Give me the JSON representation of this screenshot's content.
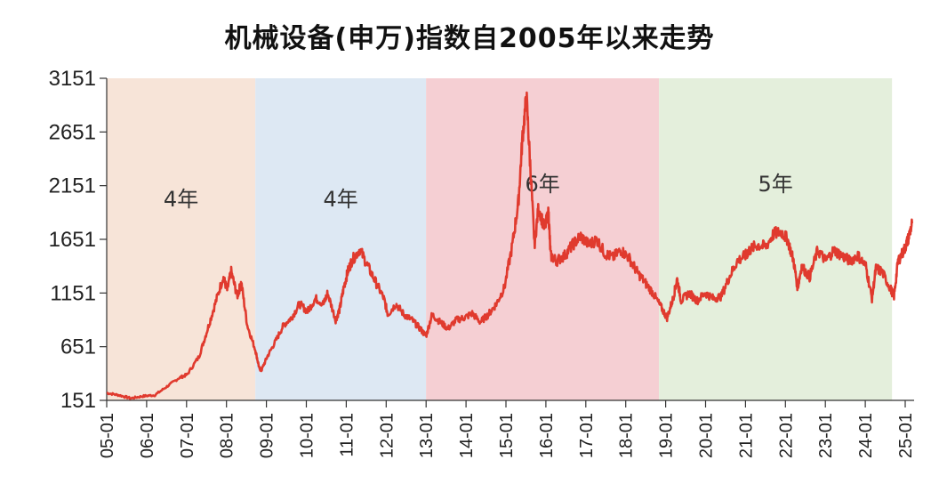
{
  "chart_data": {
    "type": "line",
    "title": "机械设备(申万)指数自2005年以来走势",
    "xlabel": "",
    "ylabel": "",
    "ylim": [
      151,
      3151
    ],
    "yticks": [
      "151",
      "651",
      "1151",
      "1651",
      "2151",
      "2651",
      "3151"
    ],
    "xticks": [
      "05-01",
      "06-01",
      "07-01",
      "08-01",
      "09-01",
      "10-01",
      "11-01",
      "12-01",
      "13-01",
      "14-01",
      "15-01",
      "16-01",
      "17-01",
      "18-01",
      "19-01",
      "20-01",
      "21-01",
      "22-01",
      "23-01",
      "24-01",
      "25-01"
    ],
    "xlim": [
      2005.0,
      2025.1
    ],
    "grid": false,
    "series": [
      {
        "color": "#e03a2e",
        "points": [
          [
            2005.0,
            220
          ],
          [
            2005.3,
            200
          ],
          [
            2005.6,
            170
          ],
          [
            2005.9,
            190
          ],
          [
            2006.2,
            200
          ],
          [
            2006.5,
            280
          ],
          [
            2006.8,
            360
          ],
          [
            2007.0,
            390
          ],
          [
            2007.3,
            560
          ],
          [
            2007.5,
            800
          ],
          [
            2007.7,
            1050
          ],
          [
            2007.9,
            1300
          ],
          [
            2008.0,
            1180
          ],
          [
            2008.1,
            1350
          ],
          [
            2008.25,
            1120
          ],
          [
            2008.35,
            1250
          ],
          [
            2008.5,
            850
          ],
          [
            2008.7,
            620
          ],
          [
            2008.8,
            450
          ],
          [
            2008.85,
            430
          ],
          [
            2009.0,
            560
          ],
          [
            2009.2,
            700
          ],
          [
            2009.4,
            850
          ],
          [
            2009.6,
            920
          ],
          [
            2009.8,
            1050
          ],
          [
            2010.0,
            980
          ],
          [
            2010.2,
            1100
          ],
          [
            2010.4,
            1050
          ],
          [
            2010.5,
            1150
          ],
          [
            2010.7,
            900
          ],
          [
            2010.8,
            1000
          ],
          [
            2010.9,
            1200
          ],
          [
            2011.0,
            1350
          ],
          [
            2011.1,
            1450
          ],
          [
            2011.3,
            1560
          ],
          [
            2011.5,
            1400
          ],
          [
            2011.7,
            1250
          ],
          [
            2011.9,
            1100
          ],
          [
            2012.0,
            950
          ],
          [
            2012.2,
            1050
          ],
          [
            2012.4,
            950
          ],
          [
            2012.6,
            900
          ],
          [
            2012.8,
            820
          ],
          [
            2012.95,
            750
          ],
          [
            2013.1,
            950
          ],
          [
            2013.3,
            880
          ],
          [
            2013.5,
            820
          ],
          [
            2013.7,
            900
          ],
          [
            2013.9,
            920
          ],
          [
            2014.1,
            960
          ],
          [
            2014.3,
            880
          ],
          [
            2014.5,
            950
          ],
          [
            2014.7,
            1050
          ],
          [
            2014.9,
            1200
          ],
          [
            2015.1,
            1600
          ],
          [
            2015.25,
            2000
          ],
          [
            2015.35,
            2600
          ],
          [
            2015.45,
            2980
          ],
          [
            2015.55,
            2300
          ],
          [
            2015.65,
            1600
          ],
          [
            2015.75,
            1950
          ],
          [
            2015.9,
            1750
          ],
          [
            2016.0,
            1900
          ],
          [
            2016.05,
            1500
          ],
          [
            2016.2,
            1450
          ],
          [
            2016.4,
            1500
          ],
          [
            2016.6,
            1600
          ],
          [
            2016.8,
            1680
          ],
          [
            2017.0,
            1600
          ],
          [
            2017.2,
            1650
          ],
          [
            2017.4,
            1520
          ],
          [
            2017.6,
            1480
          ],
          [
            2017.8,
            1550
          ],
          [
            2018.0,
            1480
          ],
          [
            2018.2,
            1350
          ],
          [
            2018.4,
            1250
          ],
          [
            2018.6,
            1150
          ],
          [
            2018.8,
            1020
          ],
          [
            2018.95,
            920
          ],
          [
            2019.1,
            1100
          ],
          [
            2019.2,
            1280
          ],
          [
            2019.3,
            1080
          ],
          [
            2019.5,
            1150
          ],
          [
            2019.7,
            1080
          ],
          [
            2019.9,
            1150
          ],
          [
            2020.1,
            1100
          ],
          [
            2020.3,
            1120
          ],
          [
            2020.5,
            1300
          ],
          [
            2020.7,
            1450
          ],
          [
            2020.9,
            1500
          ],
          [
            2021.0,
            1550
          ],
          [
            2021.2,
            1600
          ],
          [
            2021.4,
            1580
          ],
          [
            2021.6,
            1700
          ],
          [
            2021.8,
            1720
          ],
          [
            2021.95,
            1650
          ],
          [
            2022.1,
            1450
          ],
          [
            2022.2,
            1200
          ],
          [
            2022.3,
            1400
          ],
          [
            2022.5,
            1300
          ],
          [
            2022.7,
            1550
          ],
          [
            2022.9,
            1450
          ],
          [
            2023.1,
            1550
          ],
          [
            2023.3,
            1500
          ],
          [
            2023.5,
            1450
          ],
          [
            2023.7,
            1500
          ],
          [
            2023.9,
            1400
          ],
          [
            2024.05,
            1100
          ],
          [
            2024.15,
            1380
          ],
          [
            2024.3,
            1350
          ],
          [
            2024.5,
            1200
          ],
          [
            2024.6,
            1120
          ],
          [
            2024.7,
            1450
          ],
          [
            2024.85,
            1550
          ],
          [
            2024.95,
            1650
          ],
          [
            2025.05,
            1800
          ]
        ]
      }
    ],
    "periods": [
      {
        "start": 2005.0,
        "end": 2008.7,
        "label": "4年",
        "color": "#f7e4d8"
      },
      {
        "start": 2008.7,
        "end": 2012.95,
        "label": "4年",
        "color": "#dde8f3"
      },
      {
        "start": 2012.95,
        "end": 2018.75,
        "label": "6年",
        "color": "#f5cfd3"
      },
      {
        "start": 2018.75,
        "end": 2024.55,
        "label": "5年",
        "color": "#e4efdc"
      }
    ]
  }
}
